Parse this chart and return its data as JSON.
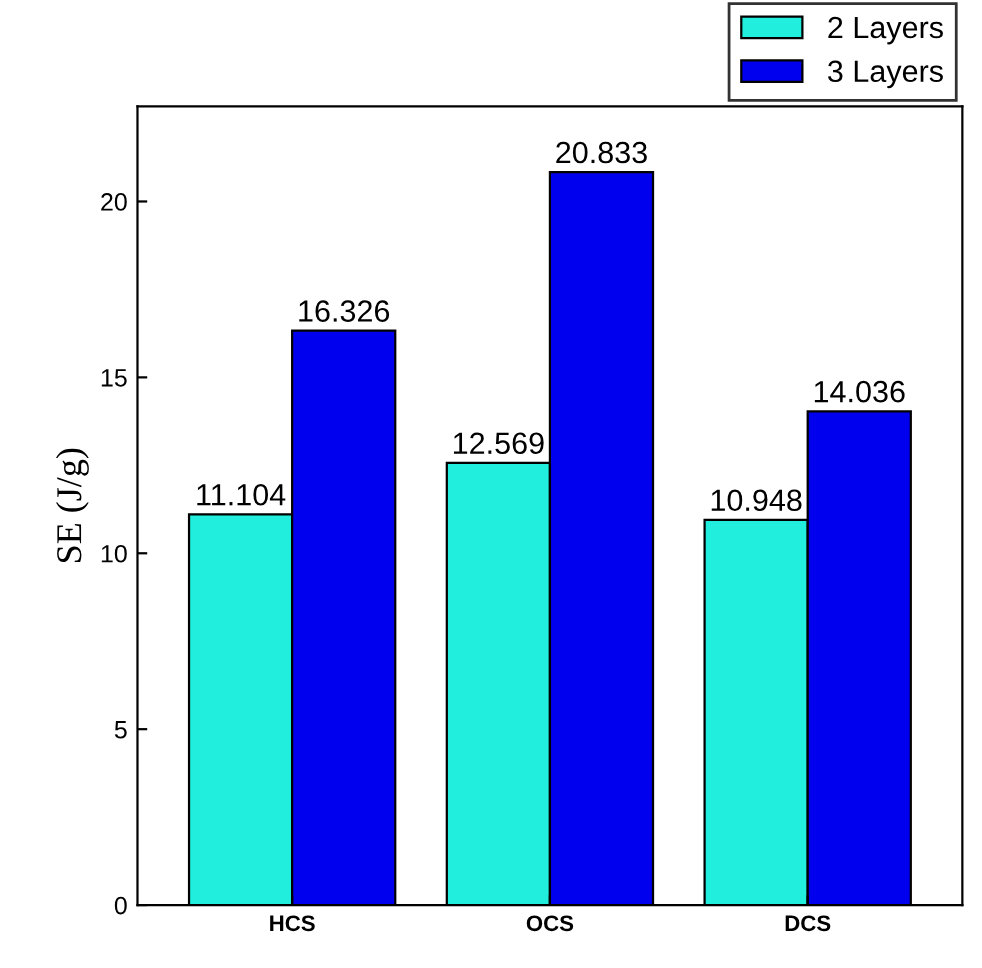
{
  "chart_data": {
    "type": "bar",
    "ylabel": "SE (J/g)",
    "categories": [
      "HCS",
      "OCS",
      "DCS"
    ],
    "series": [
      {
        "name": "2 Layers",
        "color": "#22eedd",
        "values": [
          11.104,
          12.569,
          10.948
        ]
      },
      {
        "name": "3 Layers",
        "color": "#0000ee",
        "values": [
          16.326,
          20.833,
          14.036
        ]
      }
    ],
    "ylim": [
      0,
      22.7
    ],
    "yticks": [
      0,
      5,
      10,
      15,
      20
    ],
    "data_labels": true,
    "legend": "top right",
    "grid": false
  }
}
